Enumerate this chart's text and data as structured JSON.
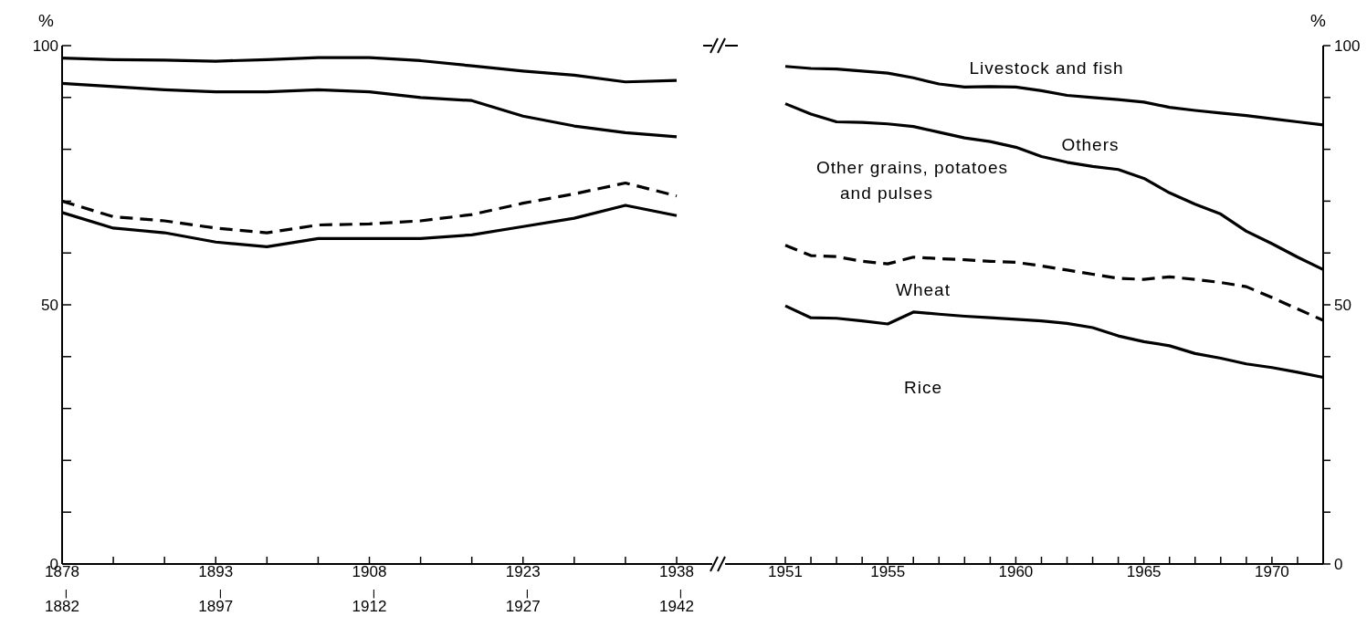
{
  "chart_data": [
    {
      "type": "line",
      "ylabel": "%",
      "marker": "none",
      "categories": [
        "1878–1882",
        null,
        null,
        "1893–1897",
        null,
        null,
        "1908–1912",
        null,
        null,
        "1923–1927",
        null,
        null,
        "1938–1942"
      ],
      "ylim": [
        0,
        100
      ],
      "yticks": [
        0,
        {
          "value": 10,
          "label": null
        },
        {
          "value": 20,
          "label": null
        },
        {
          "value": 30,
          "label": null
        },
        {
          "value": 40,
          "label": null
        },
        50,
        {
          "value": 60,
          "label": null
        },
        {
          "value": 70,
          "label": null
        },
        {
          "value": 80,
          "label": null
        },
        {
          "value": 90,
          "label": null
        },
        100
      ],
      "series": [
        {
          "color": "#000000",
          "line_style": "solid",
          "values": [
            67.8,
            64.8,
            63.9,
            62.1,
            61.2,
            62.8,
            62.8,
            62.8,
            63.5,
            65.1,
            66.7,
            69.2,
            67.2
          ]
        },
        {
          "color": "#000000",
          "line_style": "dashed",
          "values": [
            70.0,
            67.0,
            66.2,
            64.8,
            63.9,
            65.4,
            65.6,
            66.2,
            67.4,
            69.6,
            71.4,
            73.5,
            71.0
          ]
        },
        {
          "color": "#000000",
          "line_style": "solid",
          "values": [
            92.7,
            92.1,
            91.5,
            91.1,
            91.1,
            91.5,
            91.1,
            90.0,
            89.4,
            86.4,
            84.5,
            83.2,
            82.4
          ]
        },
        {
          "color": "#000000",
          "line_style": "solid",
          "values": [
            97.6,
            97.3,
            97.2,
            97.0,
            97.3,
            97.7,
            97.7,
            97.1,
            96.1,
            95.1,
            94.3,
            93.0,
            93.3
          ]
        }
      ]
    },
    {
      "type": "line",
      "ylabel": "%",
      "marker": "none",
      "categories": [
        "1951",
        null,
        null,
        null,
        "1955",
        null,
        null,
        null,
        null,
        "1960",
        null,
        null,
        null,
        null,
        "1965",
        null,
        null,
        null,
        null,
        "1970",
        null,
        null
      ],
      "ylim": [
        0,
        100
      ],
      "yticks": [
        0,
        {
          "value": 10,
          "label": null
        },
        {
          "value": 20,
          "label": null
        },
        {
          "value": 30,
          "label": null
        },
        {
          "value": 40,
          "label": null
        },
        50,
        {
          "value": 60,
          "label": null
        },
        {
          "value": 70,
          "label": null
        },
        {
          "value": 80,
          "label": null
        },
        {
          "value": 90,
          "label": null
        },
        100
      ],
      "series": [
        {
          "color": "#000000",
          "line_style": "solid",
          "values": [
            49.8,
            47.5,
            47.4,
            46.9,
            46.3,
            48.6,
            48.2,
            47.8,
            47.5,
            47.2,
            46.9,
            46.4,
            45.6,
            44.0,
            42.9,
            42.1,
            40.6,
            39.7,
            38.6,
            37.9,
            37.0,
            36.0
          ]
        },
        {
          "color": "#000000",
          "line_style": "dashed",
          "values": [
            61.5,
            59.5,
            59.3,
            58.4,
            57.9,
            59.2,
            58.9,
            58.7,
            58.4,
            58.2,
            57.5,
            56.7,
            55.9,
            55.1,
            54.9,
            55.4,
            54.9,
            54.3,
            53.5,
            51.4,
            49.2,
            47.0
          ]
        },
        {
          "color": "#000000",
          "line_style": "solid",
          "values": [
            88.8,
            86.8,
            85.3,
            85.2,
            84.9,
            84.4,
            83.3,
            82.2,
            81.5,
            80.4,
            78.6,
            77.5,
            76.7,
            76.1,
            74.4,
            71.6,
            69.4,
            67.5,
            64.2,
            61.8,
            59.2,
            56.8
          ]
        },
        {
          "color": "#000000",
          "line_style": "solid",
          "values": [
            96.0,
            95.6,
            95.5,
            95.1,
            94.7,
            93.8,
            92.6,
            92.0,
            92.1,
            92.0,
            91.3,
            90.4,
            90.0,
            89.6,
            89.1,
            88.1,
            87.5,
            87.0,
            86.5,
            85.9,
            85.3,
            84.7
          ]
        }
      ],
      "annotations": [
        "Livestock and fish",
        "Others",
        "Other grains, potatoes and pulses",
        "Wheat",
        "Rice"
      ]
    }
  ]
}
